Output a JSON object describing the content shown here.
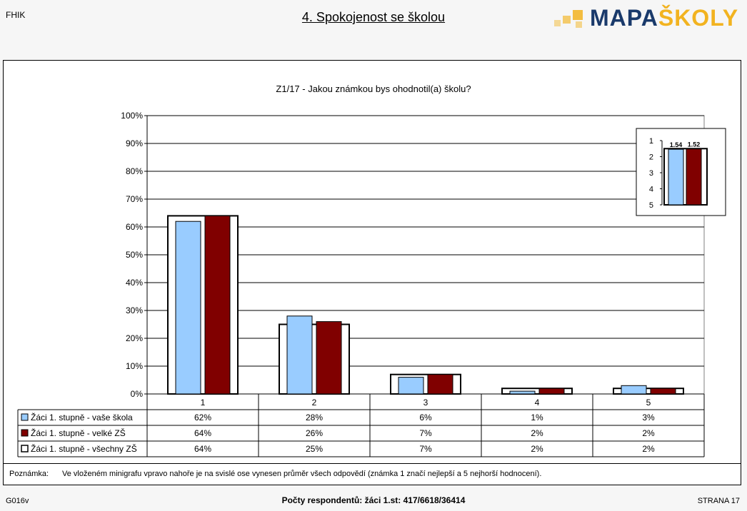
{
  "header": {
    "corner_label": "FHIK",
    "page_title": "4. Spokojenost se školou",
    "logo_part1": "MAPA",
    "logo_part2": "ŠKOLY"
  },
  "colors": {
    "series_school": "#99ccff",
    "series_large": "#800000",
    "series_all": "#ffffff",
    "logo_blue": "#1a3a6b",
    "logo_orange": "#f2b320"
  },
  "chart_data": {
    "type": "bar",
    "title": "Z1/17 - Jakou známkou bys ohodnotil(a) školu?",
    "categories": [
      "1",
      "2",
      "3",
      "4",
      "5"
    ],
    "ylim": [
      0,
      100
    ],
    "y_ticks": [
      "0%",
      "10%",
      "20%",
      "30%",
      "40%",
      "50%",
      "60%",
      "70%",
      "80%",
      "90%",
      "100%"
    ],
    "grid": true,
    "series": [
      {
        "name": "Žáci 1. stupně - vaše škola",
        "values": [
          62,
          28,
          6,
          1,
          3
        ],
        "labels": [
          "62%",
          "28%",
          "6%",
          "1%",
          "3%"
        ]
      },
      {
        "name": "Žáci 1. stupně - velké ZŠ",
        "values": [
          64,
          26,
          7,
          2,
          2
        ],
        "labels": [
          "64%",
          "26%",
          "7%",
          "2%",
          "2%"
        ]
      },
      {
        "name": "Žáci 1. stupně - všechny ZŠ",
        "values": [
          64,
          25,
          7,
          2,
          2
        ],
        "labels": [
          "64%",
          "25%",
          "7%",
          "2%",
          "2%"
        ]
      }
    ],
    "inset": {
      "y_ticks": [
        "1",
        "2",
        "3",
        "4",
        "5"
      ],
      "values": [
        1.54,
        1.52
      ],
      "labels": [
        "1.54",
        "1.52"
      ],
      "overall_mean": 1.5
    }
  },
  "note": {
    "label": "Poznámka:",
    "text": "Ve vloženém minigrafu vpravo nahoře je na svislé ose vynesen průměr všech odpovědí (známka 1 značí nejlepší a 5 nejhorší hodnocení)."
  },
  "footer": {
    "code": "G016v",
    "respondents": "Počty respondentů:   žáci 1.st: 417/6618/36414",
    "page": "STRANA  17"
  }
}
